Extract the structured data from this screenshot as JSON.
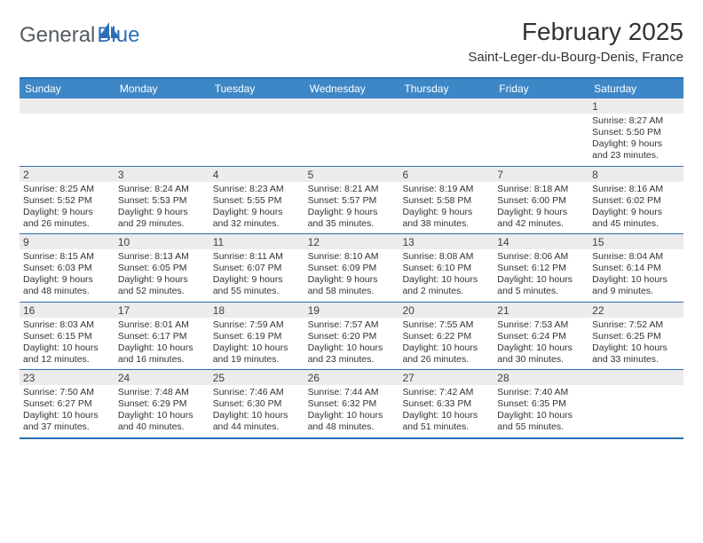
{
  "logo": {
    "text_general": "General",
    "text_blue": "Blue"
  },
  "header": {
    "month_title": "February 2025",
    "location": "Saint-Leger-du-Bourg-Denis, France"
  },
  "colors": {
    "accent": "#3e87c6",
    "accent_border": "#2d6fb5",
    "datebar_bg": "#ececec",
    "text": "#333333"
  },
  "calendar": {
    "day_headers": [
      "Sunday",
      "Monday",
      "Tuesday",
      "Wednesday",
      "Thursday",
      "Friday",
      "Saturday"
    ],
    "weeks": [
      [
        {
          "date": "",
          "sunrise": "",
          "sunset": "",
          "daylight": ""
        },
        {
          "date": "",
          "sunrise": "",
          "sunset": "",
          "daylight": ""
        },
        {
          "date": "",
          "sunrise": "",
          "sunset": "",
          "daylight": ""
        },
        {
          "date": "",
          "sunrise": "",
          "sunset": "",
          "daylight": ""
        },
        {
          "date": "",
          "sunrise": "",
          "sunset": "",
          "daylight": ""
        },
        {
          "date": "",
          "sunrise": "",
          "sunset": "",
          "daylight": ""
        },
        {
          "date": "1",
          "sunrise": "Sunrise: 8:27 AM",
          "sunset": "Sunset: 5:50 PM",
          "daylight": "Daylight: 9 hours and 23 minutes."
        }
      ],
      [
        {
          "date": "2",
          "sunrise": "Sunrise: 8:25 AM",
          "sunset": "Sunset: 5:52 PM",
          "daylight": "Daylight: 9 hours and 26 minutes."
        },
        {
          "date": "3",
          "sunrise": "Sunrise: 8:24 AM",
          "sunset": "Sunset: 5:53 PM",
          "daylight": "Daylight: 9 hours and 29 minutes."
        },
        {
          "date": "4",
          "sunrise": "Sunrise: 8:23 AM",
          "sunset": "Sunset: 5:55 PM",
          "daylight": "Daylight: 9 hours and 32 minutes."
        },
        {
          "date": "5",
          "sunrise": "Sunrise: 8:21 AM",
          "sunset": "Sunset: 5:57 PM",
          "daylight": "Daylight: 9 hours and 35 minutes."
        },
        {
          "date": "6",
          "sunrise": "Sunrise: 8:19 AM",
          "sunset": "Sunset: 5:58 PM",
          "daylight": "Daylight: 9 hours and 38 minutes."
        },
        {
          "date": "7",
          "sunrise": "Sunrise: 8:18 AM",
          "sunset": "Sunset: 6:00 PM",
          "daylight": "Daylight: 9 hours and 42 minutes."
        },
        {
          "date": "8",
          "sunrise": "Sunrise: 8:16 AM",
          "sunset": "Sunset: 6:02 PM",
          "daylight": "Daylight: 9 hours and 45 minutes."
        }
      ],
      [
        {
          "date": "9",
          "sunrise": "Sunrise: 8:15 AM",
          "sunset": "Sunset: 6:03 PM",
          "daylight": "Daylight: 9 hours and 48 minutes."
        },
        {
          "date": "10",
          "sunrise": "Sunrise: 8:13 AM",
          "sunset": "Sunset: 6:05 PM",
          "daylight": "Daylight: 9 hours and 52 minutes."
        },
        {
          "date": "11",
          "sunrise": "Sunrise: 8:11 AM",
          "sunset": "Sunset: 6:07 PM",
          "daylight": "Daylight: 9 hours and 55 minutes."
        },
        {
          "date": "12",
          "sunrise": "Sunrise: 8:10 AM",
          "sunset": "Sunset: 6:09 PM",
          "daylight": "Daylight: 9 hours and 58 minutes."
        },
        {
          "date": "13",
          "sunrise": "Sunrise: 8:08 AM",
          "sunset": "Sunset: 6:10 PM",
          "daylight": "Daylight: 10 hours and 2 minutes."
        },
        {
          "date": "14",
          "sunrise": "Sunrise: 8:06 AM",
          "sunset": "Sunset: 6:12 PM",
          "daylight": "Daylight: 10 hours and 5 minutes."
        },
        {
          "date": "15",
          "sunrise": "Sunrise: 8:04 AM",
          "sunset": "Sunset: 6:14 PM",
          "daylight": "Daylight: 10 hours and 9 minutes."
        }
      ],
      [
        {
          "date": "16",
          "sunrise": "Sunrise: 8:03 AM",
          "sunset": "Sunset: 6:15 PM",
          "daylight": "Daylight: 10 hours and 12 minutes."
        },
        {
          "date": "17",
          "sunrise": "Sunrise: 8:01 AM",
          "sunset": "Sunset: 6:17 PM",
          "daylight": "Daylight: 10 hours and 16 minutes."
        },
        {
          "date": "18",
          "sunrise": "Sunrise: 7:59 AM",
          "sunset": "Sunset: 6:19 PM",
          "daylight": "Daylight: 10 hours and 19 minutes."
        },
        {
          "date": "19",
          "sunrise": "Sunrise: 7:57 AM",
          "sunset": "Sunset: 6:20 PM",
          "daylight": "Daylight: 10 hours and 23 minutes."
        },
        {
          "date": "20",
          "sunrise": "Sunrise: 7:55 AM",
          "sunset": "Sunset: 6:22 PM",
          "daylight": "Daylight: 10 hours and 26 minutes."
        },
        {
          "date": "21",
          "sunrise": "Sunrise: 7:53 AM",
          "sunset": "Sunset: 6:24 PM",
          "daylight": "Daylight: 10 hours and 30 minutes."
        },
        {
          "date": "22",
          "sunrise": "Sunrise: 7:52 AM",
          "sunset": "Sunset: 6:25 PM",
          "daylight": "Daylight: 10 hours and 33 minutes."
        }
      ],
      [
        {
          "date": "23",
          "sunrise": "Sunrise: 7:50 AM",
          "sunset": "Sunset: 6:27 PM",
          "daylight": "Daylight: 10 hours and 37 minutes."
        },
        {
          "date": "24",
          "sunrise": "Sunrise: 7:48 AM",
          "sunset": "Sunset: 6:29 PM",
          "daylight": "Daylight: 10 hours and 40 minutes."
        },
        {
          "date": "25",
          "sunrise": "Sunrise: 7:46 AM",
          "sunset": "Sunset: 6:30 PM",
          "daylight": "Daylight: 10 hours and 44 minutes."
        },
        {
          "date": "26",
          "sunrise": "Sunrise: 7:44 AM",
          "sunset": "Sunset: 6:32 PM",
          "daylight": "Daylight: 10 hours and 48 minutes."
        },
        {
          "date": "27",
          "sunrise": "Sunrise: 7:42 AM",
          "sunset": "Sunset: 6:33 PM",
          "daylight": "Daylight: 10 hours and 51 minutes."
        },
        {
          "date": "28",
          "sunrise": "Sunrise: 7:40 AM",
          "sunset": "Sunset: 6:35 PM",
          "daylight": "Daylight: 10 hours and 55 minutes."
        },
        {
          "date": "",
          "sunrise": "",
          "sunset": "",
          "daylight": ""
        }
      ]
    ]
  }
}
